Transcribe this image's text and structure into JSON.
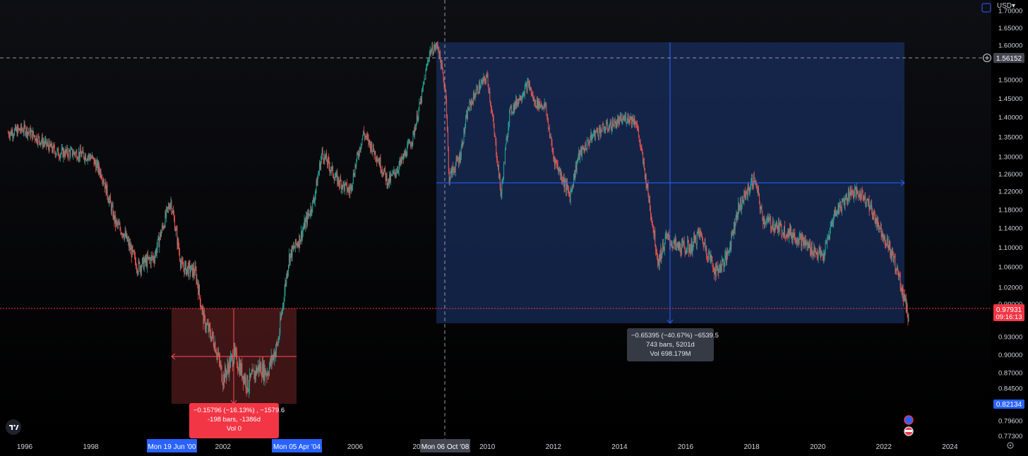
{
  "currency": "USD",
  "chart_data": {
    "type": "candlestick",
    "x_ticks": [
      "1996",
      "1998",
      "2002",
      "2006",
      "2010",
      "2012",
      "2014",
      "2016",
      "2018",
      "2020",
      "2022",
      "2024"
    ],
    "x_tick_partial": "20",
    "y_ticks": [
      "1.70000",
      "1.65000",
      "1.60000",
      "1.50000",
      "1.45000",
      "1.40000",
      "1.35000",
      "1.30000",
      "1.26000",
      "1.22000",
      "1.18000",
      "1.14000",
      "1.10000",
      "1.06000",
      "1.02000",
      "0.99000",
      "0.93000",
      "0.90000",
      "0.87000",
      "0.84500",
      "0.79600",
      "0.77300"
    ],
    "price_labels": {
      "crosshair": "1.56152",
      "last": "0.97931",
      "countdown": "09:16:13",
      "marker": "0.82134"
    },
    "date_labels": {
      "crosshair": "Mon 06 Oct '08",
      "range_start": "Mon 19 Jun '00",
      "range_end": "Mon 05 Apr '04"
    },
    "colors": {
      "up": "#26a69a",
      "down": "#ef5350",
      "rise_box": "#1e3a78",
      "drop_box": "#5a1c1e",
      "last_price": "#f23645",
      "accent": "#2962ff"
    },
    "series": [
      {
        "x": [
          "1995-07",
          "1996-01",
          "1996-07",
          "1997-01",
          "1997-07",
          "1998-01",
          "1998-05",
          "1998-10",
          "1999-01",
          "1999-06",
          "1999-12",
          "2000-06",
          "2000-10",
          "2001-03",
          "2001-06",
          "2001-10",
          "2002-01",
          "2002-05",
          "2002-10",
          "2003-02",
          "2003-05",
          "2003-09",
          "2004-01",
          "2004-05",
          "2004-10",
          "2005-01",
          "2005-06",
          "2005-11",
          "2006-04",
          "2006-09",
          "2007-01",
          "2007-06",
          "2007-10",
          "2008-01",
          "2008-04",
          "2008-07",
          "2008-10",
          "2008-11",
          "2009-03",
          "2009-06",
          "2009-09",
          "2010-01",
          "2010-06",
          "2010-09",
          "2011-04",
          "2011-06",
          "2011-10",
          "2012-01",
          "2012-07",
          "2012-10",
          "2013-04",
          "2013-10",
          "2014-04",
          "2014-07",
          "2014-10",
          "2015-03",
          "2015-06",
          "2015-10",
          "2016-03",
          "2016-06",
          "2016-12",
          "2017-04",
          "2017-08",
          "2018-02",
          "2018-05",
          "2018-11",
          "2019-06",
          "2019-10",
          "2020-03",
          "2020-07",
          "2021-01",
          "2021-06",
          "2021-10",
          "2022-03",
          "2022-06",
          "2022-09",
          "2022-10"
        ],
        "y": [
          1.36,
          1.37,
          1.34,
          1.31,
          1.31,
          1.3,
          1.26,
          1.15,
          1.13,
          1.06,
          1.08,
          1.2,
          1.06,
          1.05,
          0.96,
          0.92,
          0.86,
          0.9,
          0.85,
          0.88,
          0.87,
          0.92,
          1.08,
          1.12,
          1.2,
          1.31,
          1.25,
          1.22,
          1.36,
          1.3,
          1.24,
          1.29,
          1.35,
          1.45,
          1.58,
          1.6,
          1.46,
          1.25,
          1.3,
          1.42,
          1.47,
          1.51,
          1.21,
          1.41,
          1.49,
          1.44,
          1.43,
          1.3,
          1.21,
          1.3,
          1.36,
          1.38,
          1.4,
          1.39,
          1.27,
          1.07,
          1.12,
          1.1,
          1.1,
          1.13,
          1.05,
          1.08,
          1.18,
          1.25,
          1.16,
          1.14,
          1.12,
          1.1,
          1.08,
          1.17,
          1.22,
          1.21,
          1.16,
          1.1,
          1.05,
          0.99,
          0.96
        ]
      }
    ],
    "measurements": [
      {
        "line1": "−0.15796 (−16.13%) , −1579.6",
        "line2": "-198 bars, -1386d",
        "line3": "Vol 0"
      },
      {
        "line1": "−0.65395 (−40.67%) −6539.5",
        "line2": "743 bars, 5201d",
        "line3": "Vol 698.179M"
      }
    ]
  }
}
